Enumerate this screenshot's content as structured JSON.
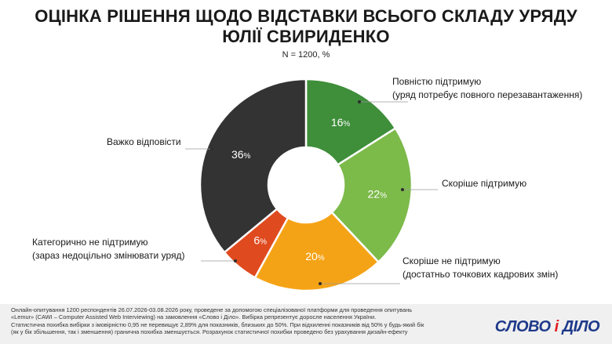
{
  "title_line1": "ОЦІНКА РІШЕННЯ ЩОДО ВІДСТАВКИ ВСЬОГО СКЛАДУ УРЯДУ",
  "title_line2": "ЮЛІЇ СВИРИДЕНКО",
  "chart_data": {
    "type": "pie",
    "title": "ОЦІНКА РІШЕННЯ ЩОДО ВІДСТАВКИ ВСЬОГО СКЛАДУ УРЯДУ ЮЛІЇ СВИРИДЕНКО",
    "subtitle": "N = 1200, %",
    "donut": true,
    "slices": [
      {
        "label_lines": [
          "Повністю підтримую",
          "(уряд потребує повного перезавантаження)"
        ],
        "value": 16,
        "color": "#3e8e3a"
      },
      {
        "label_lines": [
          "Скоріше підтримую"
        ],
        "value": 22,
        "color": "#7cba4a"
      },
      {
        "label_lines": [
          "Скоріше не підтримую",
          "(достатньо точкових кадрових змін)"
        ],
        "value": 20,
        "color": "#f5a316"
      },
      {
        "label_lines": [
          "Категорично не підтримую",
          "(зараз недоцільно змінювати уряд)"
        ],
        "value": 6,
        "color": "#e04a1f"
      },
      {
        "label_lines": [
          "Важко відповісти"
        ],
        "value": 36,
        "color": "#333333"
      }
    ]
  },
  "footnote_lines": [
    "Онлайн-опитування 1200 респондентів 26.07.2026-03.08.2026 року, проведене за допомогою спеціалізованої платформи для проведення опитувань",
    "«Lemur» (CAWI – Computer Assisted Web Interviewing) на замовлення «Слово і Діло». Вибірка репрезентує доросле населення України.",
    "Статистична похибка вибірки з імовірністю 0,95 не перевищує 2,89% для показників, близьких до 50%. При відхиленні показників від 50% у будь-який бік",
    "(як у бік збільшення, так і зменшення) гранична похибка зменшується. Розрахунок статистичної похибки проведено без урахування дизайн-ефекту"
  ],
  "logo": {
    "part1": "СЛОВО ",
    "part2": "і",
    "part3": " ДІЛО"
  }
}
